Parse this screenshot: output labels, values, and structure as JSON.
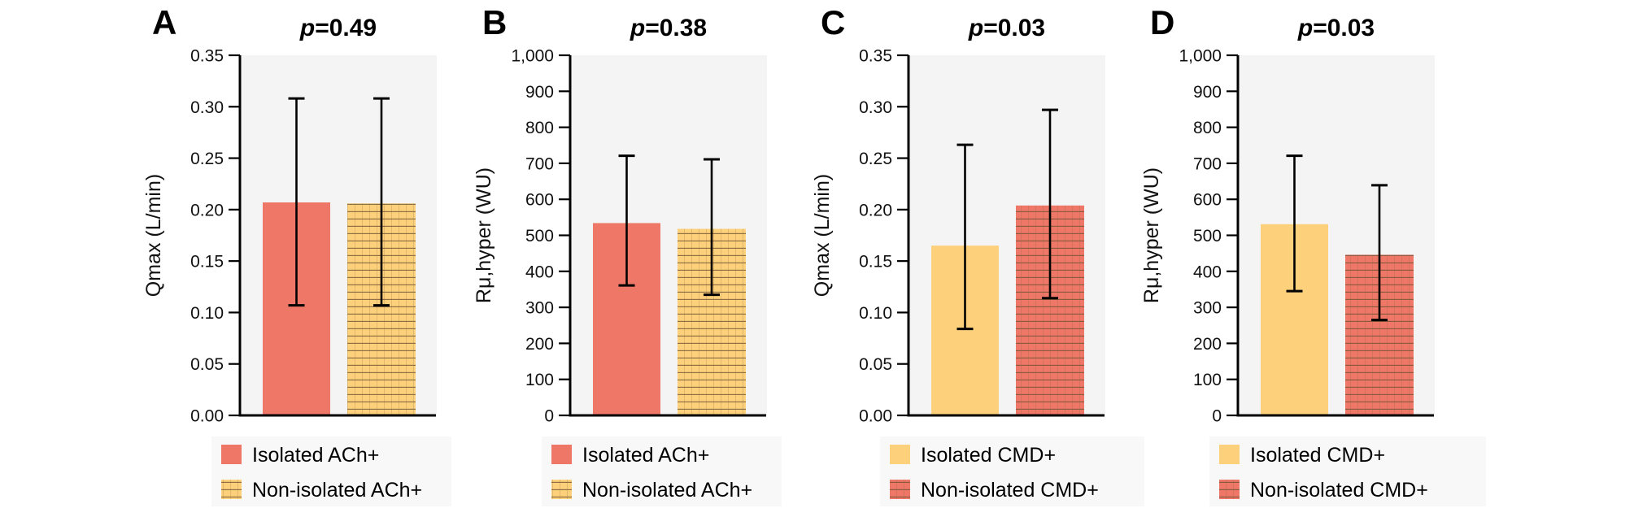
{
  "colors": {
    "red": "#EE7767",
    "yellow": "#FDD17B",
    "plot_bg": "#F4F4F4",
    "legend_bg": "#F8F8F8",
    "axis": "#000000"
  },
  "chart_data": [
    {
      "type": "bar",
      "panel": "A",
      "title": "p=0.49",
      "title_p": "p",
      "title_value": "=0.49",
      "ylabel": "Qmax (L/min)",
      "xlabel": "",
      "ylim": [
        0,
        0.35
      ],
      "yticks": [
        0,
        0.05,
        0.1,
        0.15,
        0.2,
        0.25,
        0.3,
        0.35
      ],
      "ytick_labels": [
        "0.00",
        "0.05",
        "0.10",
        "0.15",
        "0.20",
        "0.25",
        "0.30",
        "0.35"
      ],
      "grid": false,
      "legend_position": "bottom",
      "series": [
        {
          "name": "Isolated ACh+",
          "value": 0.207,
          "error_low": 0.107,
          "error_high": 0.308,
          "color": "red",
          "hatched": false
        },
        {
          "name": "Non-isolated ACh+",
          "value": 0.206,
          "error_low": 0.107,
          "error_high": 0.308,
          "color": "yellow",
          "hatched": true
        }
      ]
    },
    {
      "type": "bar",
      "panel": "B",
      "title": "p=0.38",
      "title_p": "p",
      "title_value": "=0.38",
      "ylabel": "Rμ,hyper (WU)",
      "xlabel": "",
      "ylim": [
        0,
        1000
      ],
      "yticks": [
        0,
        100,
        200,
        300,
        400,
        500,
        600,
        700,
        800,
        900,
        1000
      ],
      "ytick_labels": [
        "0",
        "100",
        "200",
        "300",
        "400",
        "500",
        "600",
        "700",
        "800",
        "900",
        "1,000"
      ],
      "grid": false,
      "legend_position": "bottom",
      "series": [
        {
          "name": "Isolated ACh+",
          "value": 534,
          "error_low": 361,
          "error_high": 721,
          "color": "red",
          "hatched": false
        },
        {
          "name": "Non-isolated ACh+",
          "value": 518,
          "error_low": 335,
          "error_high": 711,
          "color": "yellow",
          "hatched": true
        }
      ]
    },
    {
      "type": "bar",
      "panel": "C",
      "title": "p=0.03",
      "title_p": "p",
      "title_value": "=0.03",
      "ylabel": "Qmax (L/min)",
      "xlabel": "",
      "ylim": [
        0,
        0.35
      ],
      "yticks": [
        0,
        0.05,
        0.1,
        0.15,
        0.2,
        0.25,
        0.3,
        0.35
      ],
      "ytick_labels": [
        "0.00",
        "0.05",
        "0.10",
        "0.15",
        "0.20",
        "0.25",
        "0.30",
        "0.35"
      ],
      "grid": false,
      "legend_position": "bottom",
      "series": [
        {
          "name": "Isolated CMD+",
          "value": 0.165,
          "error_low": 0.084,
          "error_high": 0.263,
          "color": "yellow",
          "hatched": false
        },
        {
          "name": "Non-isolated CMD+",
          "value": 0.204,
          "error_low": 0.114,
          "error_high": 0.297,
          "color": "red",
          "hatched": true
        }
      ]
    },
    {
      "type": "bar",
      "panel": "D",
      "title": "p=0.03",
      "title_p": "p",
      "title_value": "=0.03",
      "ylabel": "Rμ,hyper (WU)",
      "xlabel": "",
      "ylim": [
        0,
        1000
      ],
      "yticks": [
        0,
        100,
        200,
        300,
        400,
        500,
        600,
        700,
        800,
        900,
        1000
      ],
      "ytick_labels": [
        "0",
        "100",
        "200",
        "300",
        "400",
        "500",
        "600",
        "700",
        "800",
        "900",
        "1,000"
      ],
      "grid": false,
      "legend_position": "bottom",
      "series": [
        {
          "name": "Isolated CMD+",
          "value": 531,
          "error_low": 345,
          "error_high": 721,
          "color": "yellow",
          "hatched": false
        },
        {
          "name": "Non-isolated CMD+",
          "value": 446,
          "error_low": 265,
          "error_high": 639,
          "color": "red",
          "hatched": true
        }
      ]
    }
  ]
}
